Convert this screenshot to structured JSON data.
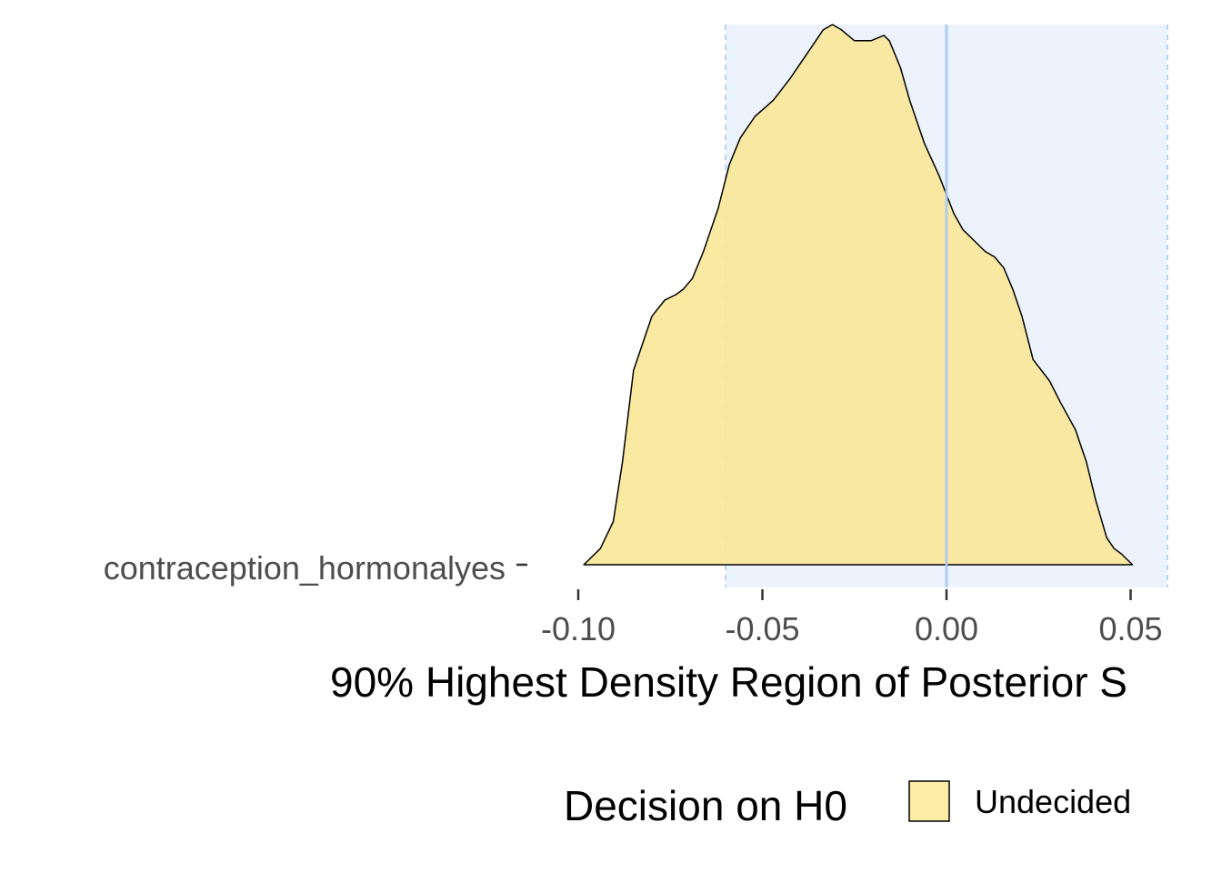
{
  "chart_data": {
    "type": "area",
    "subtype": "posterior-density-ridge",
    "category": "contraception_hormonalyes",
    "xlabel": "90% Highest Density Region of Posterior S",
    "x_ticks": [
      -0.1,
      -0.05,
      0.0,
      0.05
    ],
    "x_tick_labels": [
      "-0.10",
      "-0.05",
      "0.00",
      "0.05"
    ],
    "xlim": [
      -0.1,
      0.06
    ],
    "rope": [
      -0.06,
      0.06
    ],
    "reference_line": 0.0,
    "density": {
      "x": [
        -0.0985,
        -0.094,
        -0.0905,
        -0.088,
        -0.085,
        -0.08,
        -0.0765,
        -0.0735,
        -0.0715,
        -0.069,
        -0.066,
        -0.062,
        -0.059,
        -0.056,
        -0.052,
        -0.047,
        -0.0425,
        -0.0365,
        -0.0335,
        -0.031,
        -0.0285,
        -0.025,
        -0.0205,
        -0.017,
        -0.0155,
        -0.0125,
        -0.01,
        -0.006,
        -0.002,
        0.002,
        0.0045,
        0.0075,
        0.0105,
        0.013,
        0.0155,
        0.018,
        0.0205,
        0.0235,
        0.028,
        0.031,
        0.035,
        0.038,
        0.0405,
        0.0435,
        0.0455,
        0.0475,
        0.049,
        0.0505
      ],
      "y": [
        0.0,
        0.03,
        0.08,
        0.19,
        0.36,
        0.46,
        0.49,
        0.5,
        0.51,
        0.53,
        0.58,
        0.66,
        0.74,
        0.79,
        0.83,
        0.86,
        0.9,
        0.96,
        0.99,
        1.0,
        0.99,
        0.97,
        0.97,
        0.98,
        0.97,
        0.92,
        0.86,
        0.78,
        0.72,
        0.65,
        0.62,
        0.6,
        0.58,
        0.57,
        0.55,
        0.51,
        0.46,
        0.38,
        0.34,
        0.3,
        0.25,
        0.19,
        0.12,
        0.05,
        0.03,
        0.02,
        0.01,
        0.0
      ]
    },
    "legend": {
      "title": "Decision on H0",
      "entries": [
        {
          "label": "Undecided",
          "color": "#fdeca5"
        }
      ],
      "position": "bottom"
    },
    "colors": {
      "fill": "#fae797",
      "rope_band": "#d9e8fa",
      "reference_line": "#a6c8f0",
      "outline": "#000000"
    }
  }
}
